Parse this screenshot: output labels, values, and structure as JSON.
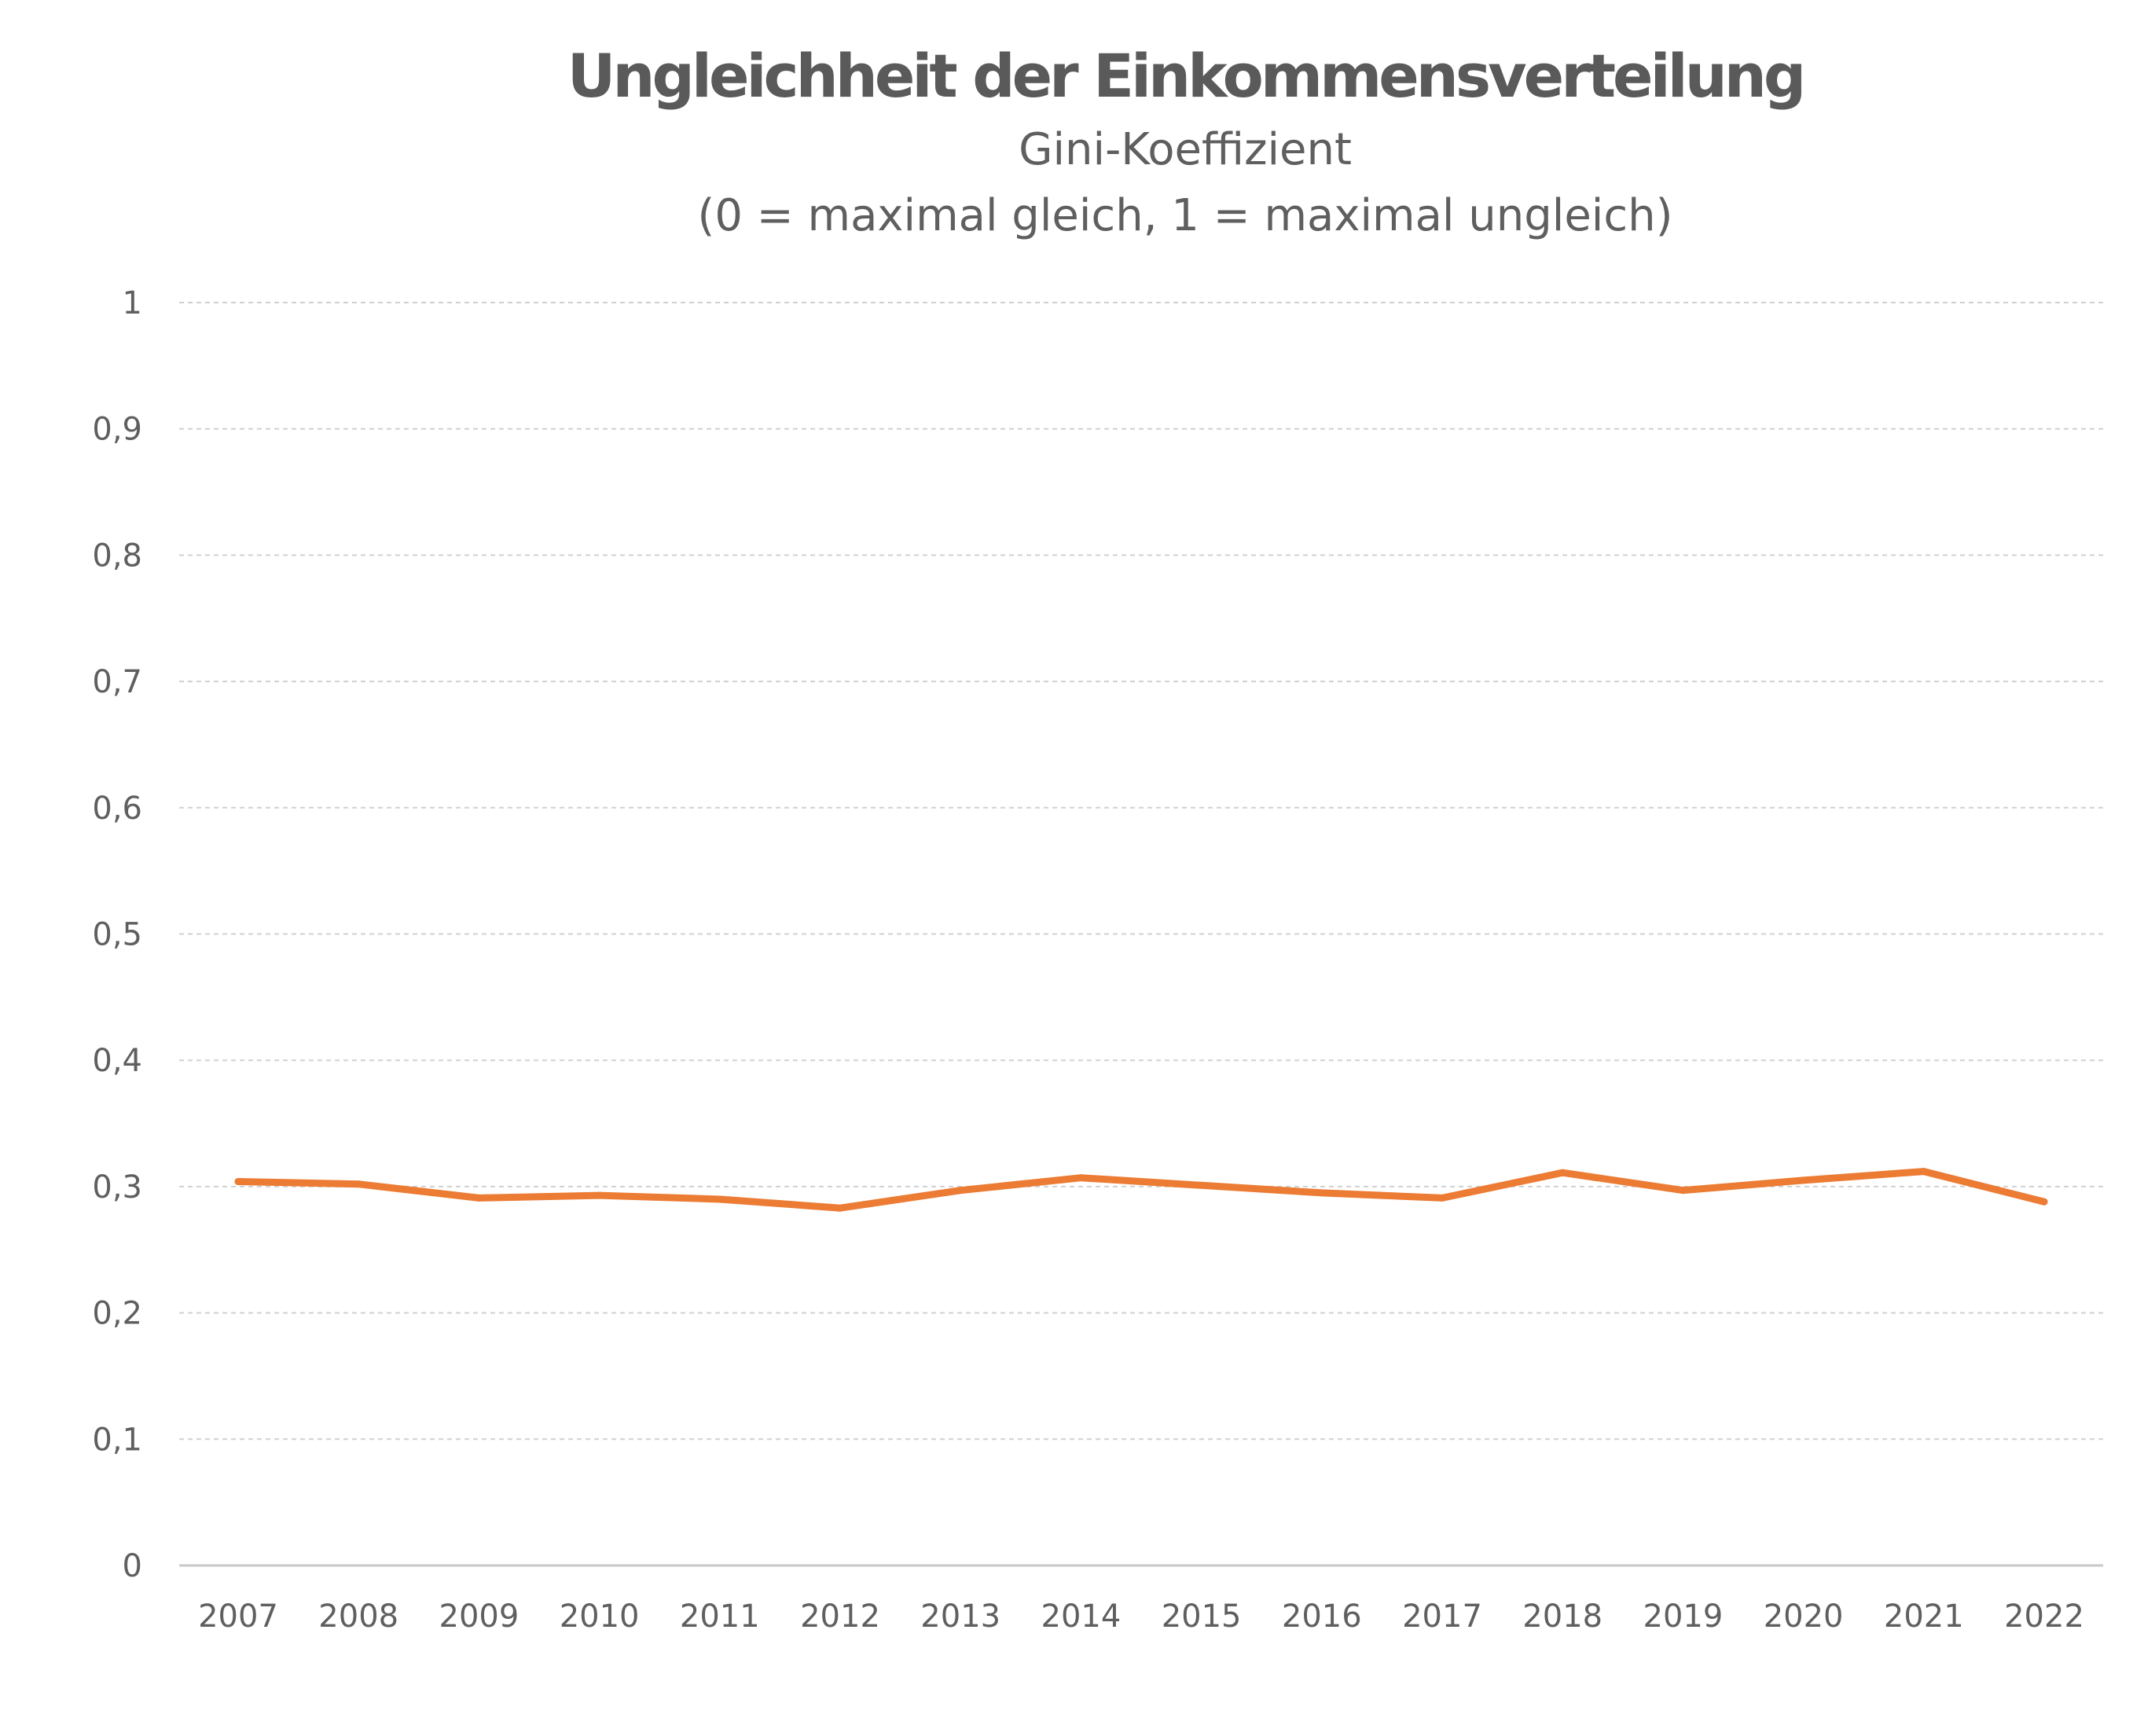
{
  "chart_data": {
    "type": "line",
    "title": "Ungleichheit der Einkommensverteilung",
    "subtitle_lines": [
      "Gini-Koeffizient",
      "(0 = maximal gleich, 1 = maximal ungleich)"
    ],
    "xlabel": "",
    "ylabel": "",
    "categories": [
      "2007",
      "2008",
      "2009",
      "2010",
      "2011",
      "2012",
      "2013",
      "2014",
      "2015",
      "2016",
      "2017",
      "2018",
      "2019",
      "2020",
      "2021",
      "2022"
    ],
    "series": [
      {
        "values": [
          0.304,
          0.302,
          0.291,
          0.293,
          0.29,
          0.283,
          0.297,
          0.307,
          0.301,
          0.295,
          0.291,
          0.311,
          0.297,
          0.305,
          0.312,
          0.288
        ],
        "color": "#ec7b33"
      }
    ],
    "ylim": [
      0,
      1
    ],
    "yticks": [
      0,
      0.1,
      0.2,
      0.3,
      0.4,
      0.5,
      0.6,
      0.7,
      0.8,
      0.9,
      1
    ],
    "ytick_labels": [
      "0",
      "0,1",
      "0,2",
      "0,3",
      "0,4",
      "0,5",
      "0,6",
      "0,7",
      "0,8",
      "0,9",
      "1"
    ],
    "grid": true,
    "grid_color": "#d0d0d0",
    "axis_color": "#c8c8c8",
    "legend": "none"
  }
}
